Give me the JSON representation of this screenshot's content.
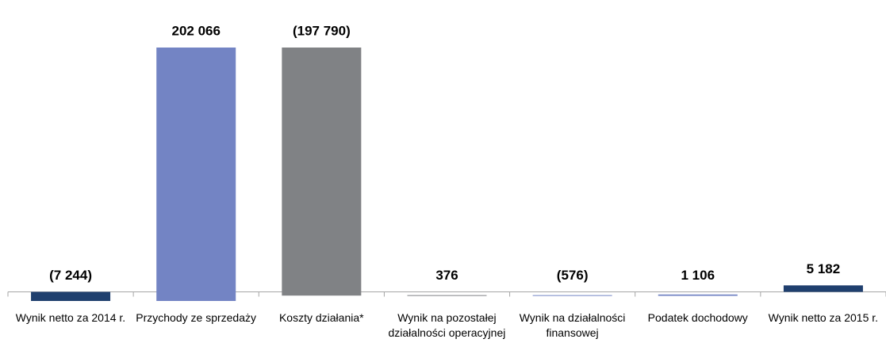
{
  "chart_data": {
    "type": "waterfall",
    "categories": [
      "Wynik netto za 2014 r.",
      "Przychody ze sprzedaży",
      "Koszty działania*",
      "Wynik na pozostałej działalności operacyjnej",
      "Wynik na działalności finansowej",
      "Podatek dochodowy",
      "Wynik netto za 2015 r."
    ],
    "values": [
      -7244,
      202066,
      -197790,
      376,
      -576,
      1106,
      5182
    ],
    "value_labels": [
      "(7 244)",
      "202 066",
      "(197 790)",
      "376",
      "(576)",
      "1 106",
      "5 182"
    ],
    "totals": [
      true,
      false,
      false,
      false,
      false,
      false,
      true
    ],
    "colors": [
      "#1f3f6e",
      "#7384c4",
      "#808285",
      "#808285",
      "#7384c4",
      "#7384c4",
      "#1f3f6e"
    ]
  }
}
